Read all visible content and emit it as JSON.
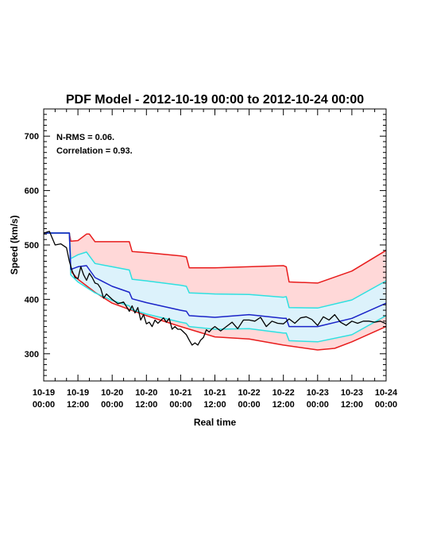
{
  "chart_data": {
    "type": "line",
    "title": "PDF Model - 2012-10-19 00:00 to 2012-10-24 00:00",
    "xlabel": "Real time",
    "ylabel": "Speed (km/s)",
    "xlim": [
      "2012-10-19T00:00",
      "2012-10-24T00:00"
    ],
    "ylim": [
      250,
      750
    ],
    "yticks": [
      300,
      400,
      500,
      600,
      700
    ],
    "ytick_labels": [
      "300",
      "400",
      "500",
      "600",
      "700"
    ],
    "xtick_labels": [
      {
        "date": "10-19",
        "time": "00:00"
      },
      {
        "date": "10-19",
        "time": "12:00"
      },
      {
        "date": "10-20",
        "time": "00:00"
      },
      {
        "date": "10-20",
        "time": "12:00"
      },
      {
        "date": "10-21",
        "time": "00:00"
      },
      {
        "date": "10-21",
        "time": "12:00"
      },
      {
        "date": "10-22",
        "time": "00:00"
      },
      {
        "date": "10-22",
        "time": "12:00"
      },
      {
        "date": "10-23",
        "time": "00:00"
      },
      {
        "date": "10-23",
        "time": "12:00"
      },
      {
        "date": "10-24",
        "time": "00:00"
      }
    ],
    "annotations": [
      "N-RMS = 0.06.",
      "Correlation = 0.93."
    ],
    "colors": {
      "outer_fill": "#ffd8d8",
      "outer_line": "#e81c1c",
      "inner_fill": "#dcf2fb",
      "inner_line": "#2ee0e0",
      "median_line": "#1a23c8",
      "observed_line": "#000000"
    },
    "series": [
      {
        "role": "outer_upper",
        "x": [
          "2012-10-19T00:00",
          "2012-10-19T09:00",
          "2012-10-19T09:30",
          "2012-10-19T12:00",
          "2012-10-19T15:00",
          "2012-10-19T16:00",
          "2012-10-19T18:00",
          "2012-10-20T00:00",
          "2012-10-20T06:00",
          "2012-10-20T07:00",
          "2012-10-20T12:00",
          "2012-10-21T00:00",
          "2012-10-21T02:00",
          "2012-10-21T03:00",
          "2012-10-21T12:00",
          "2012-10-22T00:00",
          "2012-10-22T12:00",
          "2012-10-22T13:00",
          "2012-10-22T14:00",
          "2012-10-23T00:00",
          "2012-10-23T12:00",
          "2012-10-24T00:00"
        ],
        "values": [
          522,
          522,
          507,
          508,
          520,
          520,
          506,
          506,
          506,
          488,
          486,
          480,
          478,
          458,
          458,
          460,
          462,
          460,
          432,
          430,
          452,
          490
        ]
      },
      {
        "role": "inner_upper",
        "x": [
          "2012-10-19T00:00",
          "2012-10-19T09:00",
          "2012-10-19T09:30",
          "2012-10-19T12:00",
          "2012-10-19T15:00",
          "2012-10-19T18:00",
          "2012-10-20T00:00",
          "2012-10-20T06:00",
          "2012-10-20T07:00",
          "2012-10-20T12:00",
          "2012-10-21T00:00",
          "2012-10-21T02:00",
          "2012-10-21T03:00",
          "2012-10-21T12:00",
          "2012-10-22T00:00",
          "2012-10-22T12:00",
          "2012-10-22T13:00",
          "2012-10-22T14:00",
          "2012-10-23T00:00",
          "2012-10-23T12:00",
          "2012-10-24T00:00"
        ],
        "values": [
          522,
          522,
          475,
          482,
          487,
          466,
          460,
          454,
          437,
          434,
          426,
          424,
          412,
          410,
          409,
          404,
          405,
          385,
          384,
          399,
          434
        ]
      },
      {
        "role": "median",
        "x": [
          "2012-10-19T00:00",
          "2012-10-19T09:00",
          "2012-10-19T09:30",
          "2012-10-19T12:00",
          "2012-10-19T15:00",
          "2012-10-19T18:00",
          "2012-10-20T00:00",
          "2012-10-20T06:00",
          "2012-10-20T07:00",
          "2012-10-20T12:00",
          "2012-10-21T00:00",
          "2012-10-21T02:00",
          "2012-10-21T03:00",
          "2012-10-21T12:00",
          "2012-10-22T00:00",
          "2012-10-22T12:00",
          "2012-10-22T13:00",
          "2012-10-22T14:00",
          "2012-10-23T00:00",
          "2012-10-23T12:00",
          "2012-10-24T00:00"
        ],
        "values": [
          522,
          522,
          455,
          460,
          462,
          440,
          424,
          413,
          401,
          394,
          380,
          378,
          370,
          367,
          372,
          365,
          365,
          350,
          350,
          365,
          393
        ]
      },
      {
        "role": "inner_lower",
        "x": [
          "2012-10-19T00:00",
          "2012-10-19T09:00",
          "2012-10-19T09:30",
          "2012-10-19T12:00",
          "2012-10-19T18:00",
          "2012-10-20T00:00",
          "2012-10-20T06:00",
          "2012-10-20T07:00",
          "2012-10-20T12:00",
          "2012-10-21T00:00",
          "2012-10-21T02:00",
          "2012-10-21T03:00",
          "2012-10-21T12:00",
          "2012-10-22T00:00",
          "2012-10-22T12:00",
          "2012-10-22T13:00",
          "2012-10-22T14:00",
          "2012-10-23T00:00",
          "2012-10-23T12:00",
          "2012-10-24T00:00"
        ],
        "values": [
          522,
          522,
          445,
          432,
          412,
          398,
          388,
          381,
          373,
          358,
          356,
          350,
          345,
          346,
          338,
          338,
          324,
          322,
          335,
          370
        ]
      },
      {
        "role": "outer_lower",
        "x": [
          "2012-10-19T00:00",
          "2012-10-19T09:00",
          "2012-10-19T09:30",
          "2012-10-19T12:00",
          "2012-10-19T18:00",
          "2012-10-20T00:00",
          "2012-10-20T12:00",
          "2012-10-21T00:00",
          "2012-10-21T12:00",
          "2012-10-22T00:00",
          "2012-10-22T12:00",
          "2012-10-23T00:00",
          "2012-10-23T06:00",
          "2012-10-23T12:00",
          "2012-10-24T00:00"
        ],
        "values": [
          522,
          522,
          452,
          437,
          413,
          393,
          370,
          350,
          331,
          327,
          316,
          307,
          310,
          322,
          350
        ]
      },
      {
        "role": "observed",
        "x": [
          "2012-10-19T00:00",
          "2012-10-19T02:00",
          "2012-10-19T04:00",
          "2012-10-19T06:00",
          "2012-10-19T08:00",
          "2012-10-19T09:00",
          "2012-10-19T10:00",
          "2012-10-19T11:00",
          "2012-10-19T12:00",
          "2012-10-19T13:00",
          "2012-10-19T14:00",
          "2012-10-19T15:00",
          "2012-10-19T16:00",
          "2012-10-19T17:00",
          "2012-10-19T18:00",
          "2012-10-19T19:00",
          "2012-10-19T20:00",
          "2012-10-19T21:00",
          "2012-10-19T22:00",
          "2012-10-19T23:00",
          "2012-10-20T00:00",
          "2012-10-20T02:00",
          "2012-10-20T04:00",
          "2012-10-20T06:00",
          "2012-10-20T07:00",
          "2012-10-20T08:00",
          "2012-10-20T09:00",
          "2012-10-20T10:00",
          "2012-10-20T11:00",
          "2012-10-20T12:00",
          "2012-10-20T13:00",
          "2012-10-20T14:00",
          "2012-10-20T15:00",
          "2012-10-20T16:00",
          "2012-10-20T18:00",
          "2012-10-20T19:00",
          "2012-10-20T20:00",
          "2012-10-20T21:00",
          "2012-10-20T22:00",
          "2012-10-20T23:00",
          "2012-10-21T00:00",
          "2012-10-21T01:00",
          "2012-10-21T02:00",
          "2012-10-21T03:00",
          "2012-10-21T04:00",
          "2012-10-21T05:00",
          "2012-10-21T06:00",
          "2012-10-21T07:00",
          "2012-10-21T08:00",
          "2012-10-21T09:00",
          "2012-10-21T10:00",
          "2012-10-21T11:00",
          "2012-10-21T12:00",
          "2012-10-21T14:00",
          "2012-10-21T16:00",
          "2012-10-21T18:00",
          "2012-10-21T20:00",
          "2012-10-21T22:00",
          "2012-10-22T00:00",
          "2012-10-22T02:00",
          "2012-10-22T04:00",
          "2012-10-22T06:00",
          "2012-10-22T08:00",
          "2012-10-22T10:00",
          "2012-10-22T12:00",
          "2012-10-22T14:00",
          "2012-10-22T16:00",
          "2012-10-22T18:00",
          "2012-10-22T20:00",
          "2012-10-22T22:00",
          "2012-10-23T00:00",
          "2012-10-23T02:00",
          "2012-10-23T04:00",
          "2012-10-23T06:00",
          "2012-10-23T08:00",
          "2012-10-23T10:00",
          "2012-10-23T12:00",
          "2012-10-23T14:00",
          "2012-10-23T16:00",
          "2012-10-23T18:00",
          "2012-10-23T20:00",
          "2012-10-23T22:00",
          "2012-10-24T00:00"
        ],
        "values": [
          522,
          525,
          500,
          502,
          495,
          470,
          452,
          440,
          438,
          460,
          445,
          435,
          448,
          440,
          430,
          428,
          420,
          402,
          410,
          405,
          400,
          392,
          395,
          378,
          388,
          375,
          385,
          362,
          372,
          355,
          358,
          350,
          362,
          356,
          366,
          358,
          365,
          345,
          350,
          345,
          345,
          340,
          335,
          325,
          316,
          320,
          316,
          325,
          330,
          344,
          340,
          346,
          350,
          342,
          350,
          358,
          346,
          362,
          362,
          360,
          367,
          350,
          360,
          356,
          355,
          364,
          356,
          366,
          368,
          363,
          352,
          368,
          362,
          372,
          358,
          352,
          360,
          356,
          360,
          360,
          358,
          360,
          355
        ]
      }
    ]
  }
}
